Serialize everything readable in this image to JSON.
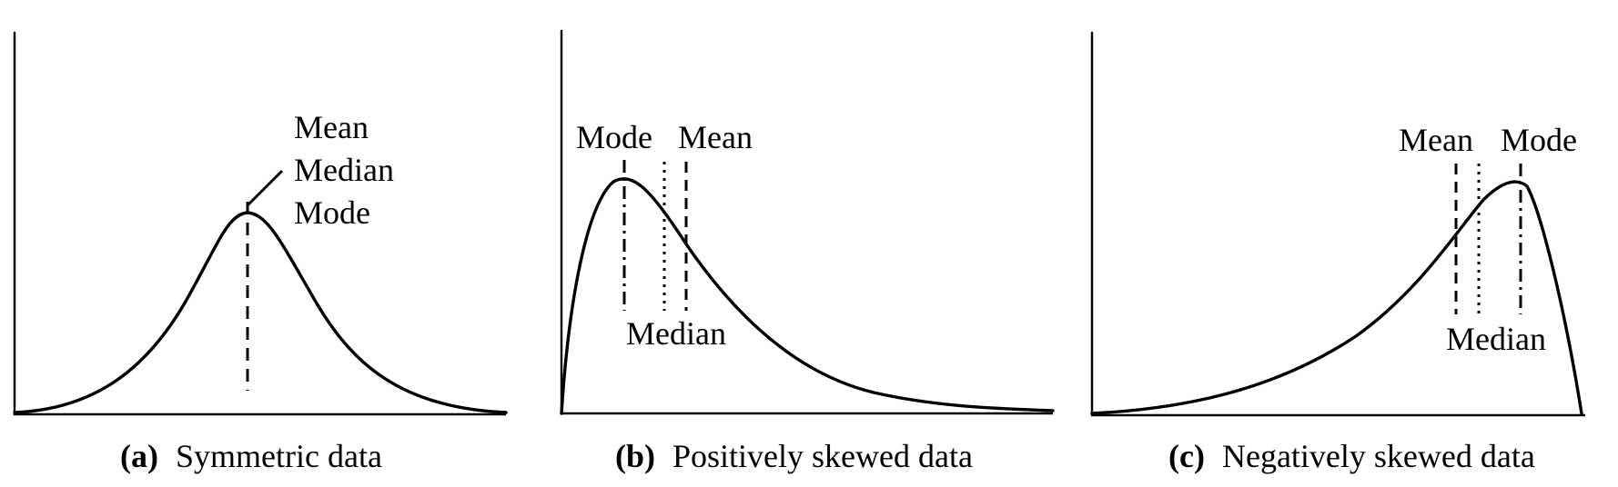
{
  "panels": [
    {
      "letter": "(a)",
      "caption": "Symmetric data",
      "labels": {
        "mean": "Mean",
        "median": "Median",
        "mode": "Mode"
      }
    },
    {
      "letter": "(b)",
      "caption": "Positively skewed data",
      "labels": {
        "mean": "Mean",
        "median": "Median",
        "mode": "Mode"
      }
    },
    {
      "letter": "(c)",
      "caption": "Negatively skewed data",
      "labels": {
        "mean": "Mean",
        "median": "Median",
        "mode": "Mode"
      }
    }
  ]
}
